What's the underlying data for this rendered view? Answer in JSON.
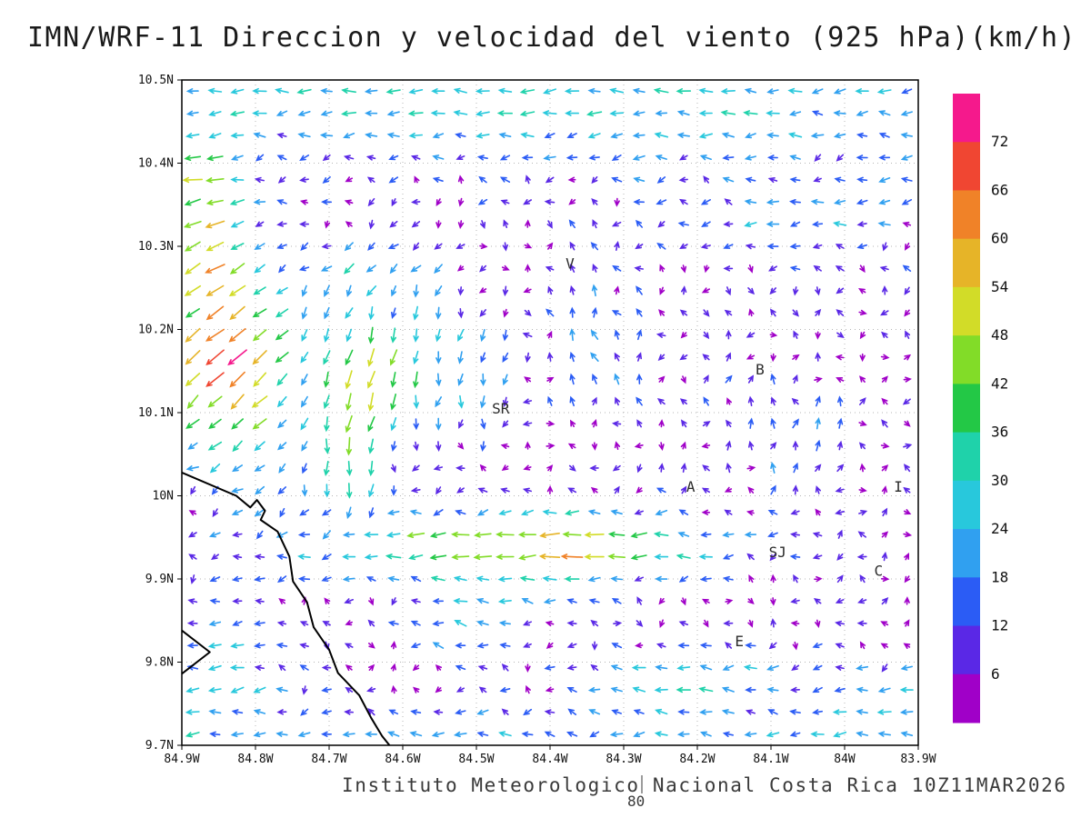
{
  "title": "IMN/WRF-11 Direccion y velocidad del viento (925 hPa)(km/h)",
  "footer": {
    "text": "Instituto Meteorologico Nacional Costa Rica 10Z11MAR2026",
    "ref_label": "80"
  },
  "chart_data": {
    "type": "vector_field",
    "title": "IMN/WRF-11 Direccion y velocidad del viento (925 hPa)(km/h)",
    "units": "km/h",
    "level": "925 hPa",
    "lon_range": [
      -84.9,
      -83.9
    ],
    "lat_range": [
      9.7,
      10.5
    ],
    "x_axis": {
      "ticks": [
        {
          "v": -84.9,
          "label": "84.9W"
        },
        {
          "v": -84.8,
          "label": "84.8W"
        },
        {
          "v": -84.7,
          "label": "84.7W"
        },
        {
          "v": -84.6,
          "label": "84.6W"
        },
        {
          "v": -84.5,
          "label": "84.5W"
        },
        {
          "v": -84.4,
          "label": "84.4W"
        },
        {
          "v": -84.3,
          "label": "84.3W"
        },
        {
          "v": -84.2,
          "label": "84.2W"
        },
        {
          "v": -84.1,
          "label": "84.1W"
        },
        {
          "v": -84.0,
          "label": "84W"
        },
        {
          "v": -83.9,
          "label": "83.9W"
        }
      ]
    },
    "y_axis": {
      "ticks": [
        {
          "v": 10.5,
          "label": "10.5N"
        },
        {
          "v": 10.4,
          "label": "10.4N"
        },
        {
          "v": 10.3,
          "label": "10.3N"
        },
        {
          "v": 10.2,
          "label": "10.2N"
        },
        {
          "v": 10.1,
          "label": "10.1N"
        },
        {
          "v": 10.0,
          "label": "10N"
        },
        {
          "v": 9.9,
          "label": "9.9N"
        },
        {
          "v": 9.8,
          "label": "9.8N"
        },
        {
          "v": 9.7,
          "label": "9.7N"
        }
      ]
    },
    "colorbar": {
      "levels": [
        6,
        12,
        18,
        24,
        30,
        36,
        42,
        48,
        54,
        60,
        66,
        72
      ],
      "colors": [
        "#A000C8",
        "#5A28E6",
        "#2B5CF5",
        "#30A0F0",
        "#28C8DC",
        "#1FD2AA",
        "#23C846",
        "#82DC28",
        "#D2DC28",
        "#E6B428",
        "#F08228",
        "#F04632",
        "#F5198C"
      ]
    },
    "stations": [
      {
        "label": "V",
        "lon": -84.373,
        "lat": 10.273
      },
      {
        "label": "SR",
        "lon": -84.467,
        "lat": 10.099
      },
      {
        "label": "B",
        "lon": -84.115,
        "lat": 10.146
      },
      {
        "label": "A",
        "lon": -84.209,
        "lat": 10.005
      },
      {
        "label": "SJ",
        "lon": -84.091,
        "lat": 9.926
      },
      {
        "label": "C",
        "lon": -83.954,
        "lat": 9.904
      },
      {
        "label": "E",
        "lon": -84.143,
        "lat": 9.819
      },
      {
        "label": "I",
        "lon": -83.927,
        "lat": 10.005
      }
    ],
    "coastlines": [
      [
        [
          -84.9,
          10.028
        ],
        [
          -84.826,
          10.0
        ],
        [
          -84.807,
          9.986
        ],
        [
          -84.798,
          9.995
        ],
        [
          -84.787,
          9.982
        ],
        [
          -84.793,
          9.971
        ],
        [
          -84.77,
          9.957
        ],
        [
          -84.754,
          9.927
        ],
        [
          -84.749,
          9.897
        ],
        [
          -84.73,
          9.872
        ],
        [
          -84.721,
          9.842
        ],
        [
          -84.7,
          9.815
        ],
        [
          -84.688,
          9.787
        ],
        [
          -84.659,
          9.76
        ],
        [
          -84.643,
          9.733
        ],
        [
          -84.628,
          9.711
        ],
        [
          -84.618,
          9.7
        ]
      ],
      [
        [
          -84.9,
          9.786
        ],
        [
          -84.862,
          9.812
        ],
        [
          -84.9,
          9.838
        ]
      ]
    ],
    "grid": {
      "nx": 33,
      "ny": 30
    },
    "noise": {
      "amplitude": 8,
      "seed": 7
    },
    "flow_features": [
      {
        "name": "top-easterly-band",
        "c": [
          -84.4,
          10.48
        ],
        "s": [
          0.9,
          0.09
        ],
        "uv": [
          -28,
          -1
        ]
      },
      {
        "name": "topright-band",
        "c": [
          -84.05,
          10.33
        ],
        "s": [
          0.2,
          0.05
        ],
        "uv": [
          -18,
          1
        ]
      },
      {
        "name": "topleft-pocket",
        "c": [
          -84.88,
          10.38
        ],
        "s": [
          0.06,
          0.05
        ],
        "uv": [
          -30,
          2
        ]
      },
      {
        "name": "nw-jet",
        "c": [
          -84.84,
          10.16
        ],
        "s": [
          0.09,
          0.13
        ],
        "uv": [
          -50,
          -40
        ]
      },
      {
        "name": "west-edge-jet",
        "c": [
          -84.87,
          10.3
        ],
        "s": [
          0.05,
          0.07
        ],
        "uv": [
          -34,
          -10
        ]
      },
      {
        "name": "central-downdraft",
        "c": [
          -84.58,
          10.16
        ],
        "s": [
          0.14,
          0.1
        ],
        "uv": [
          -6,
          -30
        ]
      },
      {
        "name": "downdraft-core",
        "c": [
          -84.66,
          10.12
        ],
        "s": [
          0.05,
          0.08
        ],
        "uv": [
          -10,
          -32
        ]
      },
      {
        "name": "turning-flow",
        "c": [
          -84.68,
          10.02
        ],
        "s": [
          0.05,
          0.06
        ],
        "uv": [
          6,
          -24
        ]
      },
      {
        "name": "updraft-near-v",
        "c": [
          -84.35,
          10.18
        ],
        "s": [
          0.07,
          0.1
        ],
        "uv": [
          -6,
          22
        ]
      },
      {
        "name": "westward-jet-band",
        "c": [
          -84.45,
          9.94
        ],
        "s": [
          0.28,
          0.045
        ],
        "uv": [
          -50,
          -3
        ]
      },
      {
        "name": "band-orange-core",
        "c": [
          -84.36,
          9.94
        ],
        "s": [
          0.05,
          0.03
        ],
        "uv": [
          -16,
          0
        ]
      },
      {
        "name": "nicoya-flow",
        "c": [
          -84.85,
          9.8
        ],
        "s": [
          0.1,
          0.09
        ],
        "uv": [
          -22,
          -4
        ]
      },
      {
        "name": "band-lower",
        "c": [
          -84.5,
          9.85
        ],
        "s": [
          0.1,
          0.05
        ],
        "uv": [
          -24,
          6
        ]
      },
      {
        "name": "south-edge-band",
        "c": [
          -84.4,
          9.71
        ],
        "s": [
          0.9,
          0.05
        ],
        "uv": [
          -18,
          0
        ]
      },
      {
        "name": "southeast-band",
        "c": [
          -84.22,
          9.785
        ],
        "s": [
          0.13,
          0.035
        ],
        "uv": [
          -30,
          0
        ]
      },
      {
        "name": "se-corner-flow",
        "c": [
          -83.95,
          9.76
        ],
        "s": [
          0.12,
          0.07
        ],
        "uv": [
          -16,
          -3
        ]
      },
      {
        "name": "ne-updraft",
        "c": [
          -84.08,
          10.08
        ],
        "s": [
          0.1,
          0.08
        ],
        "uv": [
          2,
          14
        ]
      },
      {
        "name": "nw-mid-flow",
        "c": [
          -84.65,
          10.28
        ],
        "s": [
          0.1,
          0.05
        ],
        "uv": [
          -14,
          -8
        ]
      }
    ]
  }
}
